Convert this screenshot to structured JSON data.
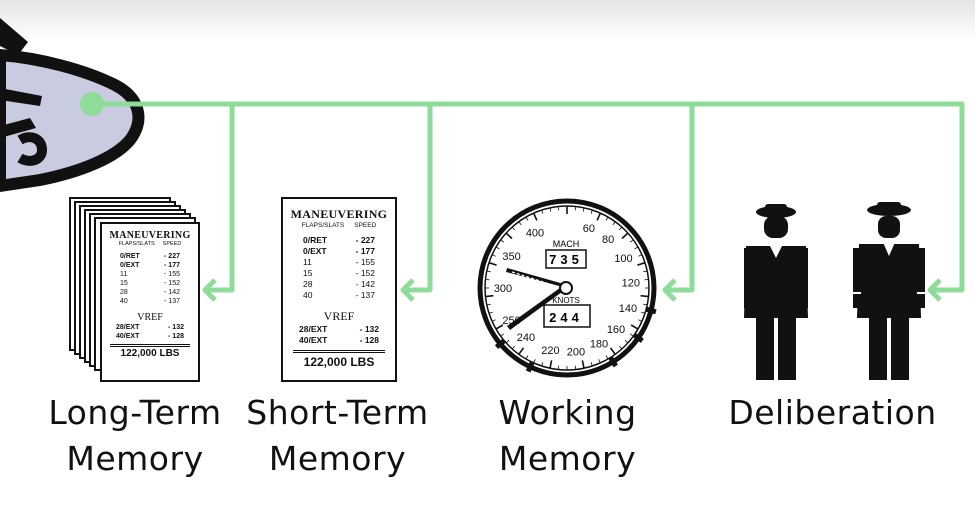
{
  "connector_color": "#8fdc9a",
  "captions": {
    "long_term": [
      "Long-Term",
      "Memory"
    ],
    "short_term": [
      "Short-Term",
      "Memory"
    ],
    "working": [
      "Working",
      "Memory"
    ],
    "deliberation": [
      "Deliberation"
    ]
  },
  "card": {
    "title": "MANEUVERING",
    "subtitle_left": "FLAPS/SLATS",
    "subtitle_right": "SPEED",
    "rows": [
      {
        "setting": "0/RET",
        "speed": "- 227"
      },
      {
        "setting": "0/EXT",
        "speed": "- 177"
      },
      {
        "setting": "11",
        "speed": "- 155"
      },
      {
        "setting": "15",
        "speed": "- 152"
      },
      {
        "setting": "28",
        "speed": "- 142"
      },
      {
        "setting": "40",
        "speed": "- 137"
      }
    ],
    "vref_label": "VREF",
    "vref_rows": [
      {
        "setting": "28/EXT",
        "speed": "- 132"
      },
      {
        "setting": "40/EXT",
        "speed": "- 128"
      }
    ],
    "weight": "122,000 LBS"
  },
  "gauge": {
    "ticks": [
      "60",
      "80",
      "100",
      "120",
      "140",
      "160",
      "180",
      "200",
      "220",
      "240",
      "250",
      "300",
      "350",
      "400"
    ],
    "mach_label": "MACH",
    "mach_value": "735",
    "knots_label": "KNOTS",
    "knots_value": "244"
  },
  "icons": [
    "airplane-icon",
    "pilot-icon",
    "pilot-icon"
  ]
}
